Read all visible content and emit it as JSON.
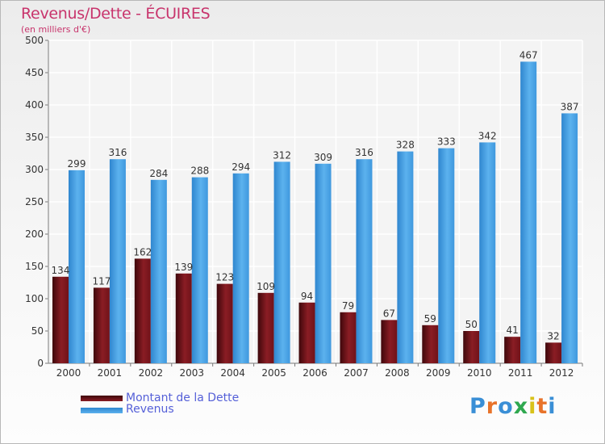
{
  "chart_data": {
    "type": "bar",
    "title": "Revenus/Dette - ÉCUIRES",
    "subtitle": "(en milliers d'€)",
    "categories": [
      "2000",
      "2001",
      "2002",
      "2003",
      "2004",
      "2005",
      "2006",
      "2007",
      "2008",
      "2009",
      "2010",
      "2011",
      "2012"
    ],
    "series": [
      {
        "name": "Montant de la Dette",
        "color": "#7a1a1f",
        "values": [
          134,
          117,
          162,
          139,
          123,
          109,
          94,
          79,
          67,
          59,
          50,
          41,
          32
        ]
      },
      {
        "name": "Revenus",
        "color": "#4ba3e3",
        "values": [
          299,
          316,
          284,
          288,
          294,
          312,
          309,
          316,
          328,
          333,
          342,
          467,
          387
        ]
      }
    ],
    "ylim": [
      0,
      500
    ],
    "yticks": [
      0,
      50,
      100,
      150,
      200,
      250,
      300,
      350,
      400,
      450,
      500
    ],
    "grid": true,
    "legend": "bottom-left"
  },
  "logo": {
    "text": "Proxiti",
    "letter_colors": [
      "#3a8fd6",
      "#e8732a",
      "#3a8fd6",
      "#2fa84f",
      "#d8c21a",
      "#e8732a",
      "#3a8fd6"
    ]
  }
}
